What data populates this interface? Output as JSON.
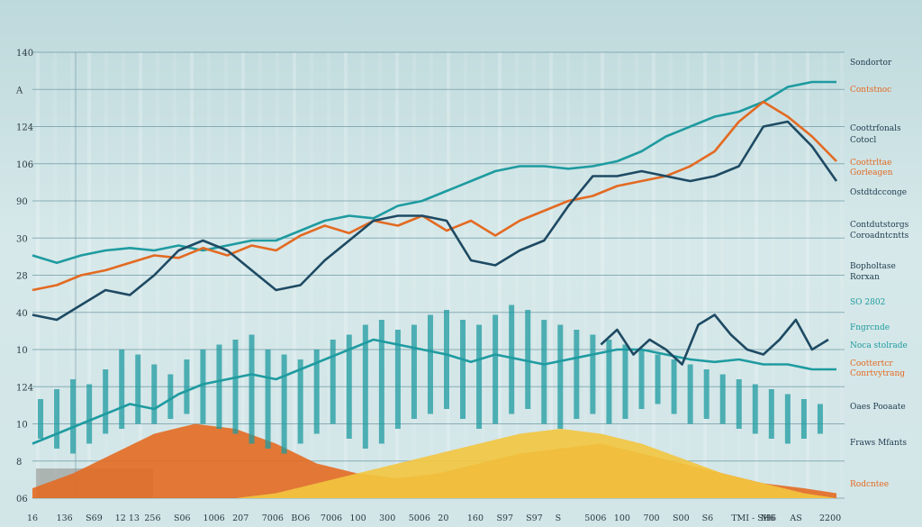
{
  "colors": {
    "background": "#cfe3e5",
    "grid": "#6f9aa6",
    "navy": "#1e4a63",
    "teal": "#1e9ba0",
    "orange": "#e36a22",
    "amber": "#f0a535",
    "yellow": "#f3c53f",
    "gray_bars": "#8c8a86",
    "dark_text": "#2b3a42"
  },
  "chart_data": {
    "type": "line",
    "title": "",
    "xlabel": "",
    "ylabel": "",
    "y_tick_labels": [
      "140",
      "A",
      "124",
      "106",
      "90",
      "30",
      "28",
      "40",
      "10",
      "124",
      "10",
      "8",
      "06"
    ],
    "x_tick_labels": [
      "16",
      "136",
      "S69",
      "12 13",
      "256",
      "S06",
      "1006",
      "207",
      "7006",
      "BO6",
      "7006",
      "100",
      "300",
      "5006",
      "20",
      "160",
      "S97",
      "S97",
      "S",
      "5006",
      "100",
      "700",
      "S00",
      "S6",
      "TMI - SH6",
      "M6",
      "AS",
      "2200"
    ],
    "legend": [
      {
        "label": "Sondortor",
        "color": "#1e3b4f"
      },
      {
        "label": "Contstnoc",
        "color": "#e36a22"
      },
      {
        "label": "Coottrfonals",
        "color": "#1e3b4f"
      },
      {
        "label": "Cotocl",
        "color": "#1e3b4f"
      },
      {
        "label": "Coottrltae",
        "color": "#e36a22"
      },
      {
        "label": "Gorleagen",
        "color": "#e36a22"
      },
      {
        "label": "Ostdtdcconge",
        "color": "#1e3b4f"
      },
      {
        "label": "Contdutstorgs",
        "color": "#1e3b4f"
      },
      {
        "label": "Coroadntcntts",
        "color": "#1e3b4f"
      },
      {
        "label": "Bopholtase",
        "color": "#1e3b4f"
      },
      {
        "label": "Rorxan",
        "color": "#1e3b4f"
      },
      {
        "label": "SO 2802",
        "color": "#1e9ba0"
      },
      {
        "label": "Fngrcnde",
        "color": "#1e9ba0"
      },
      {
        "label": "Noca stolrade",
        "color": "#1e9ba0"
      },
      {
        "label": "Coottertcr",
        "color": "#e36a22"
      },
      {
        "label": "Conrtvytrang",
        "color": "#e36a22"
      },
      {
        "label": "Oaes Pooaate",
        "color": "#1e3b4f"
      },
      {
        "label": "Fraws Mfants",
        "color": "#1e3b4f"
      },
      {
        "label": "Rodcntee",
        "color": "#e36a22"
      }
    ],
    "grid": true,
    "series": [
      {
        "color": "#1e9ba0",
        "x": [
          0,
          3,
          6,
          9,
          12,
          15,
          18,
          21,
          24,
          27,
          30,
          33,
          36,
          39,
          42,
          45,
          48,
          51,
          54,
          57,
          60,
          63,
          66,
          69,
          72,
          75,
          78,
          81,
          84,
          87,
          90,
          93,
          96,
          99
        ],
        "y": [
          98,
          95,
          98,
          100,
          101,
          100,
          102,
          100,
          102,
          104,
          104,
          108,
          112,
          114,
          113,
          118,
          120,
          124,
          128,
          132,
          134,
          134,
          133,
          134,
          136,
          140,
          146,
          150,
          154,
          156,
          160,
          166,
          168,
          168
        ]
      },
      {
        "color": "#e36a22",
        "x": [
          0,
          3,
          6,
          9,
          12,
          15,
          18,
          21,
          24,
          27,
          30,
          33,
          36,
          39,
          42,
          45,
          48,
          51,
          54,
          57,
          60,
          63,
          66,
          69,
          72,
          75,
          78,
          81,
          84,
          87,
          90,
          93,
          96,
          99
        ],
        "y": [
          84,
          86,
          90,
          92,
          95,
          98,
          97,
          101,
          98,
          102,
          100,
          106,
          110,
          107,
          112,
          110,
          114,
          108,
          112,
          106,
          112,
          116,
          120,
          122,
          126,
          128,
          130,
          134,
          140,
          152,
          160,
          154,
          146,
          136
        ]
      },
      {
        "color": "#1e4a63",
        "x": [
          0,
          3,
          6,
          9,
          12,
          15,
          18,
          21,
          24,
          27,
          30,
          33,
          36,
          39,
          42,
          45,
          48,
          51,
          54,
          57,
          60,
          63,
          66,
          69,
          72,
          75,
          78,
          81,
          84,
          87,
          90,
          93,
          96,
          99
        ],
        "y": [
          74,
          72,
          78,
          84,
          82,
          90,
          100,
          104,
          100,
          92,
          84,
          86,
          96,
          104,
          112,
          114,
          114,
          112,
          96,
          94,
          100,
          104,
          118,
          130,
          130,
          132,
          130,
          128,
          130,
          134,
          150,
          152,
          142,
          128
        ]
      },
      {
        "color": "#1e9ba0",
        "x": [
          0,
          3,
          6,
          9,
          12,
          15,
          18,
          21,
          24,
          27,
          30,
          33,
          36,
          39,
          42,
          45,
          48,
          51,
          54,
          57,
          60,
          63,
          66,
          69,
          72,
          75,
          78,
          81,
          84,
          87,
          90,
          93,
          96,
          99
        ],
        "y": [
          22,
          26,
          30,
          34,
          38,
          36,
          42,
          46,
          48,
          50,
          48,
          52,
          56,
          60,
          64,
          62,
          60,
          58,
          55,
          58,
          56,
          54,
          56,
          58,
          60,
          60,
          58,
          56,
          55,
          56,
          54,
          54,
          52,
          52
        ]
      },
      {
        "color": "#1e4a63",
        "x": [
          70,
          72,
          74,
          76,
          78,
          80,
          82,
          84,
          86,
          88,
          90,
          92,
          94,
          96,
          98
        ],
        "y": [
          62,
          68,
          58,
          64,
          60,
          54,
          70,
          74,
          66,
          60,
          58,
          64,
          72,
          60,
          64
        ]
      }
    ],
    "area_series": [
      {
        "color": "#e36a22",
        "x": [
          0,
          5,
          10,
          15,
          20,
          25,
          30,
          35,
          40,
          45,
          50,
          55,
          60,
          65,
          70,
          75,
          80,
          85,
          90,
          95,
          99
        ],
        "y": [
          4,
          10,
          18,
          26,
          30,
          28,
          22,
          14,
          10,
          8,
          10,
          14,
          18,
          20,
          22,
          18,
          14,
          10,
          6,
          4,
          2
        ]
      },
      {
        "color": "#f3c53f",
        "x": [
          0,
          5,
          10,
          15,
          20,
          25,
          30,
          35,
          40,
          45,
          50,
          55,
          60,
          65,
          70,
          75,
          80,
          85,
          90,
          95,
          99
        ],
        "y": [
          0,
          0,
          0,
          0,
          0,
          0,
          2,
          6,
          10,
          14,
          18,
          22,
          26,
          28,
          26,
          22,
          16,
          10,
          6,
          2,
          0
        ]
      }
    ],
    "bar_series": [
      {
        "name": "",
        "color": "#1e9ba0",
        "x": [
          1,
          3,
          5,
          7,
          9,
          11,
          13,
          15,
          17,
          19,
          21,
          23,
          25,
          27,
          29,
          31,
          33,
          35,
          37,
          39,
          41,
          43,
          45,
          47,
          49,
          51,
          53,
          55,
          57,
          59,
          61,
          63,
          65,
          67,
          69,
          71,
          73,
          75,
          77,
          79,
          81,
          83,
          85,
          87,
          89,
          91,
          93,
          95,
          97
        ],
        "low": [
          24,
          20,
          18,
          22,
          26,
          28,
          30,
          30,
          32,
          34,
          30,
          28,
          26,
          22,
          20,
          18,
          22,
          26,
          30,
          24,
          20,
          22,
          28,
          32,
          34,
          36,
          32,
          28,
          30,
          34,
          36,
          30,
          28,
          32,
          34,
          30,
          32,
          36,
          38,
          34,
          30,
          32,
          30,
          28,
          26,
          24,
          22,
          24,
          26
        ],
        "high": [
          40,
          44,
          48,
          46,
          52,
          60,
          58,
          54,
          50,
          56,
          60,
          62,
          64,
          66,
          60,
          58,
          56,
          60,
          64,
          66,
          70,
          72,
          68,
          70,
          74,
          76,
          72,
          70,
          74,
          78,
          76,
          72,
          70,
          68,
          66,
          64,
          62,
          60,
          58,
          56,
          54,
          52,
          50,
          48,
          46,
          44,
          42,
          40,
          38
        ]
      }
    ],
    "ylim": [
      0,
      180
    ],
    "xlim": [
      0,
      100
    ]
  }
}
